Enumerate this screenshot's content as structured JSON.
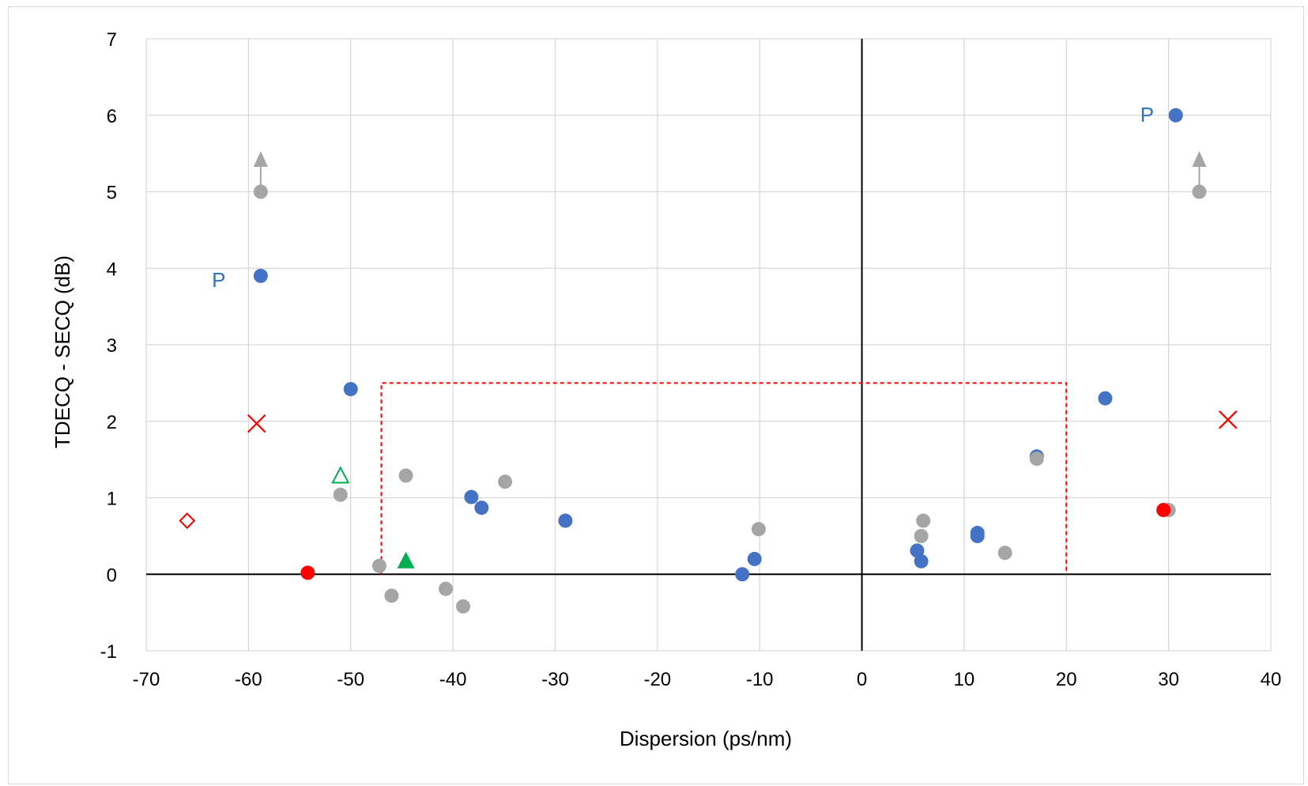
{
  "chart_data": {
    "type": "scatter",
    "xlabel": "Dispersion (ps/nm)",
    "ylabel": "TDECQ - SECQ (dB)",
    "xlim": [
      -70,
      40
    ],
    "ylim": [
      -1,
      7
    ],
    "x_ticks": [
      "-70",
      "-60",
      "-50",
      "-40",
      "-30",
      "-20",
      "-10",
      "0",
      "10",
      "20",
      "30",
      "40"
    ],
    "y_ticks": [
      "-1",
      "0",
      "1",
      "2",
      "3",
      "4",
      "5",
      "6",
      "7"
    ],
    "grid": true,
    "colors": {
      "blue": "#4472c4",
      "gray": "#a5a5a5",
      "red": "#ff0000",
      "green": "#00b050",
      "annotation_blue": "#2e75b6"
    },
    "series": [
      {
        "marker": "circle",
        "color": "#4472c4",
        "points": [
          [
            -58.8,
            3.9
          ],
          [
            -50,
            2.42
          ],
          [
            -38.2,
            1.01
          ],
          [
            -37.2,
            0.87
          ],
          [
            -29,
            0.7
          ],
          [
            -11.7,
            0.0
          ],
          [
            -10.5,
            0.2
          ],
          [
            5.4,
            0.31
          ],
          [
            5.8,
            0.17
          ],
          [
            11.3,
            0.54
          ],
          [
            11.3,
            0.5
          ],
          [
            17.1,
            1.54
          ],
          [
            23.8,
            2.3
          ],
          [
            30.7,
            6.0
          ]
        ]
      },
      {
        "marker": "circle",
        "color": "#a5a5a5",
        "points": [
          [
            -58.8,
            5.0
          ],
          [
            -51,
            1.04
          ],
          [
            -47.2,
            0.11
          ],
          [
            -46,
            -0.28
          ],
          [
            -44.6,
            1.29
          ],
          [
            -40.7,
            -0.19
          ],
          [
            -39,
            -0.42
          ],
          [
            -34.9,
            1.21
          ],
          [
            -10.1,
            0.59
          ],
          [
            5.8,
            0.5
          ],
          [
            6.0,
            0.7
          ],
          [
            14.0,
            0.28
          ],
          [
            17.1,
            1.51
          ],
          [
            30.0,
            0.84
          ],
          [
            33.0,
            5.0
          ]
        ]
      },
      {
        "marker": "circle",
        "color": "#ff0000",
        "points": [
          [
            -54.2,
            0.02
          ],
          [
            29.5,
            0.84
          ]
        ]
      },
      {
        "marker": "x",
        "color": "#ff0000",
        "points": [
          [
            -59.2,
            1.97
          ],
          [
            35.8,
            2.02
          ]
        ]
      },
      {
        "marker": "diamond-open",
        "color": "#ff0000",
        "points": [
          [
            -66,
            0.7
          ]
        ]
      },
      {
        "marker": "triangle-open",
        "color": "#00b050",
        "points": [
          [
            -51,
            1.28
          ]
        ]
      },
      {
        "marker": "triangle",
        "color": "#00b050",
        "points": [
          [
            -44.6,
            0.17
          ]
        ]
      }
    ],
    "arrows": [
      {
        "x": -58.8,
        "from_y": 5.0,
        "to_y": 5.45,
        "color": "#a5a5a5"
      },
      {
        "x": 33.0,
        "from_y": 5.0,
        "to_y": 5.45,
        "color": "#a5a5a5"
      }
    ],
    "annotations": [
      {
        "text": "P",
        "x": -62.9,
        "y": 3.86,
        "color": "#2e75b6"
      },
      {
        "text": "P",
        "x": 27.9,
        "y": 6.02,
        "color": "#2e75b6"
      }
    ],
    "region": {
      "color": "#ff0000",
      "style": "dashed",
      "path": [
        [
          -47,
          0
        ],
        [
          -47,
          2.5
        ],
        [
          20,
          2.5
        ],
        [
          20,
          0
        ]
      ]
    }
  }
}
